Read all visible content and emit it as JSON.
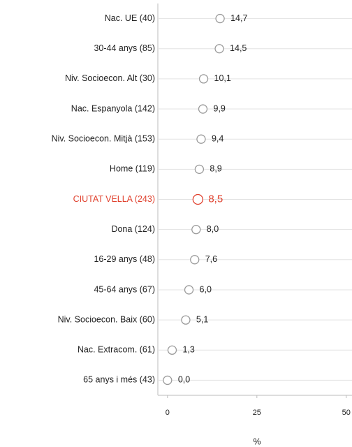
{
  "chart_data": {
    "type": "dot",
    "categories": [
      "Nac. UE (40)",
      "30-44 anys (85)",
      "Niv. Socioecon. Alt (30)",
      "Nac. Espanyola (142)",
      "Niv. Socioecon. Mitjà (153)",
      "Home (119)",
      "CIUTAT VELLA (243)",
      "Dona (124)",
      "16-29 anys (48)",
      "45-64 anys (67)",
      "Niv. Socioecon. Baix (60)",
      "Nac. Extracom. (61)",
      "65 anys i més (43)"
    ],
    "values": [
      14.7,
      14.5,
      10.1,
      9.9,
      9.4,
      8.9,
      8.5,
      8.0,
      7.6,
      6.0,
      5.1,
      1.3,
      0.0
    ],
    "value_labels": [
      "14,7",
      "14,5",
      "10,1",
      "9,9",
      "9,4",
      "8,9",
      "8,5",
      "8,0",
      "7,6",
      "6,0",
      "5,1",
      "1,3",
      "0,0"
    ],
    "point_colors": [
      "#9a9a9a",
      "#9a9a9a",
      "#9a9a9a",
      "#9a9a9a",
      "#9a9a9a",
      "#9a9a9a",
      "#e0412e",
      "#9a9a9a",
      "#9a9a9a",
      "#9a9a9a",
      "#9a9a9a",
      "#9a9a9a",
      "#9a9a9a"
    ],
    "xlim": [
      -2.7,
      51.6
    ],
    "xticks": [
      0,
      25,
      50
    ],
    "xlabel": "%",
    "grid": true
  }
}
